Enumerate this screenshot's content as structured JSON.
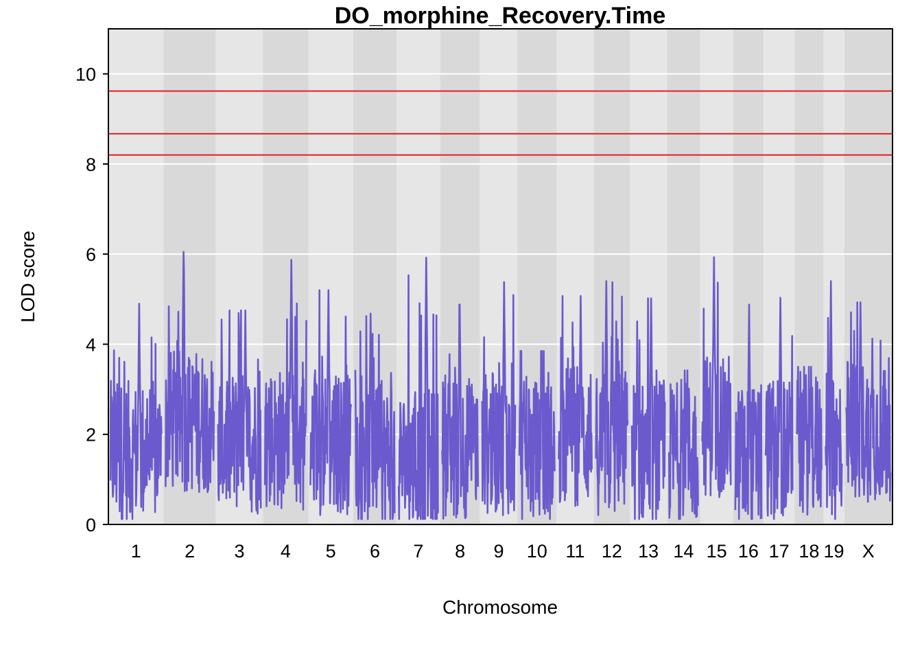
{
  "chart_data": {
    "type": "line",
    "title": "DO_morphine_Recovery.Time",
    "xlabel": "Chromosome",
    "ylabel": "LOD score",
    "ylim": [
      0,
      11
    ],
    "yticks": [
      0,
      2,
      4,
      6,
      8,
      10
    ],
    "grid": true,
    "colors": {
      "line": "#6a5acd",
      "threshold": "#ee1c1c",
      "band_light": "#e6e6e6",
      "band_dark": "#d9d9d9",
      "grid": "#ffffff"
    },
    "thresholds": [
      9.62,
      8.67,
      8.2
    ],
    "chromosomes": [
      {
        "label": "1",
        "peak": 4.9,
        "base": 1.6
      },
      {
        "label": "2",
        "peak": 6.05,
        "base": 2.3
      },
      {
        "label": "3",
        "peak": 4.75,
        "base": 1.8
      },
      {
        "label": "4",
        "peak": 5.87,
        "base": 1.9
      },
      {
        "label": "5",
        "peak": 5.2,
        "base": 1.8
      },
      {
        "label": "6",
        "peak": 4.68,
        "base": 1.5
      },
      {
        "label": "7",
        "peak": 5.92,
        "base": 1.4
      },
      {
        "label": "8",
        "peak": 4.88,
        "base": 1.7
      },
      {
        "label": "9",
        "peak": 5.38,
        "base": 1.8
      },
      {
        "label": "10",
        "peak": 3.85,
        "base": 1.6
      },
      {
        "label": "11",
        "peak": 5.07,
        "base": 2.0
      },
      {
        "label": "12",
        "peak": 5.4,
        "base": 1.8
      },
      {
        "label": "13",
        "peak": 5.02,
        "base": 1.6
      },
      {
        "label": "14",
        "peak": 3.42,
        "base": 1.6
      },
      {
        "label": "15",
        "peak": 5.93,
        "base": 2.2
      },
      {
        "label": "16",
        "peak": 4.88,
        "base": 1.5
      },
      {
        "label": "17",
        "peak": 5.03,
        "base": 1.7
      },
      {
        "label": "18",
        "peak": 3.5,
        "base": 1.8
      },
      {
        "label": "19",
        "peak": 5.4,
        "base": 1.6
      },
      {
        "label": "X",
        "peak": 4.93,
        "base": 2.1
      }
    ]
  }
}
